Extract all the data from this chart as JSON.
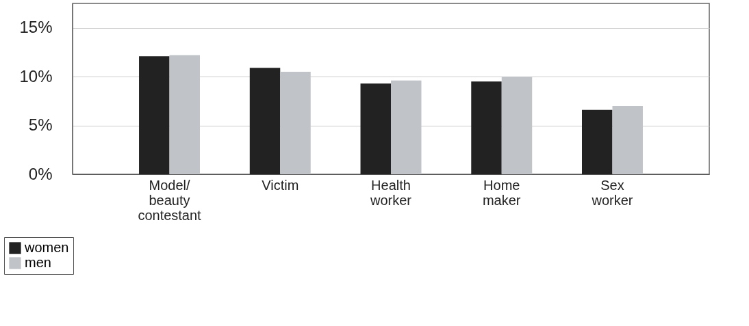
{
  "chart_data": {
    "type": "bar",
    "categories": [
      "Model/\nbeauty\ncontestant",
      "Victim",
      "Health\nworker",
      "Home\nmaker",
      "Sex\nworker"
    ],
    "series": [
      {
        "name": "women",
        "color": "#222222",
        "values": [
          12.1,
          10.9,
          9.3,
          9.5,
          6.6
        ]
      },
      {
        "name": "men",
        "color": "#c0c3c8",
        "values": [
          12.2,
          10.5,
          9.6,
          10.0,
          7.0
        ]
      }
    ],
    "ylim": [
      0,
      17.5
    ],
    "yticks": [
      {
        "value": 0,
        "label": "0%"
      },
      {
        "value": 5,
        "label": "5%"
      },
      {
        "value": 10,
        "label": "10%"
      },
      {
        "value": 15,
        "label": "15%"
      }
    ],
    "grid": "y",
    "legend": "bottom left"
  }
}
